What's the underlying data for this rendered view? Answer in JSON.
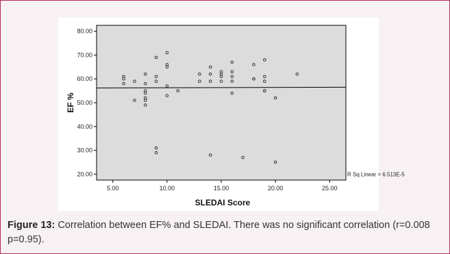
{
  "chart_data": {
    "type": "scatter",
    "xlabel": "SLEDAI Score",
    "ylabel": "EF %",
    "xlim": [
      3.5,
      26.5
    ],
    "ylim": [
      17.5,
      82.5
    ],
    "x_ticks": [
      "5.00",
      "10.00",
      "15.00",
      "20.00",
      "25.00"
    ],
    "y_ticks": [
      "20.00",
      "30.00",
      "40.00",
      "50.00",
      "60.00",
      "70.00",
      "80.00"
    ],
    "points": [
      [
        6,
        61
      ],
      [
        6,
        60
      ],
      [
        6,
        58
      ],
      [
        7,
        59
      ],
      [
        7,
        51
      ],
      [
        8,
        62
      ],
      [
        8,
        58
      ],
      [
        8,
        55
      ],
      [
        8,
        54
      ],
      [
        8,
        52
      ],
      [
        8,
        51
      ],
      [
        8,
        49
      ],
      [
        9,
        69
      ],
      [
        9,
        61
      ],
      [
        9,
        59
      ],
      [
        9,
        31
      ],
      [
        9,
        29
      ],
      [
        10,
        71
      ],
      [
        10,
        66
      ],
      [
        10,
        65
      ],
      [
        10,
        57
      ],
      [
        10,
        53
      ],
      [
        11,
        55
      ],
      [
        13,
        62
      ],
      [
        13,
        59
      ],
      [
        14,
        65
      ],
      [
        14,
        62
      ],
      [
        14,
        59
      ],
      [
        14,
        28
      ],
      [
        15,
        63
      ],
      [
        15,
        62
      ],
      [
        15,
        61
      ],
      [
        15,
        59
      ],
      [
        16,
        67
      ],
      [
        16,
        63
      ],
      [
        16,
        61
      ],
      [
        16,
        59
      ],
      [
        16,
        54
      ],
      [
        17,
        27
      ],
      [
        18,
        66
      ],
      [
        18,
        60
      ],
      [
        18,
        60
      ],
      [
        19,
        68
      ],
      [
        19,
        61
      ],
      [
        19,
        59
      ],
      [
        19,
        55
      ],
      [
        19,
        55
      ],
      [
        20,
        52
      ],
      [
        20,
        25
      ],
      [
        22,
        62
      ]
    ],
    "fit_line": {
      "x": [
        3.5,
        26.5
      ],
      "y": [
        56.2,
        56.5
      ]
    },
    "annotation": "R Sq Linear = 6.513E-5",
    "grid": false,
    "plot_background": "#dcdcdc",
    "point_color": "#333333",
    "line_color": "#000000"
  },
  "caption": {
    "label": "Figure 13:",
    "text": " Correlation between EF% and SLEDAI. There was no significant correlation (r=0.008 p=0.95)."
  },
  "colors": {
    "border": "#b5275a",
    "panel": "#f7f1f3"
  }
}
